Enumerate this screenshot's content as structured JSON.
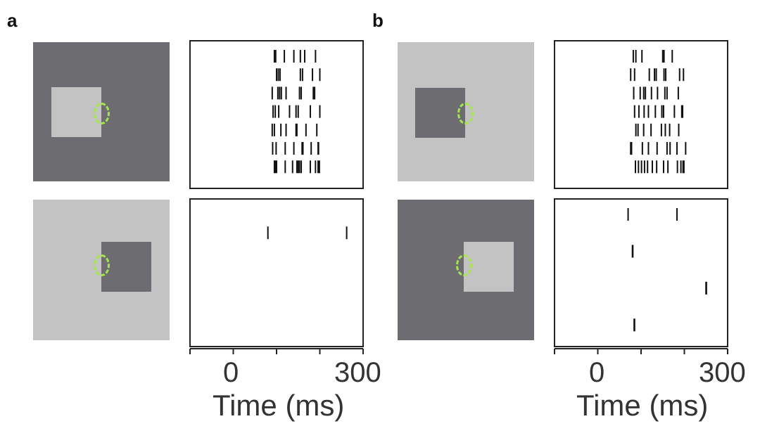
{
  "panels": {
    "a": {
      "letter": "a",
      "top_stimulus": {
        "background": "#6d6d71",
        "square": "#c3c3c3"
      },
      "bottom_stimulus": {
        "background": "#c3c3c3",
        "square": "#6d6d71"
      }
    },
    "b": {
      "letter": "b",
      "top_stimulus": {
        "background": "#c3c3c3",
        "square": "#6d6d71"
      },
      "bottom_stimulus": {
        "background": "#6d6d71",
        "square": "#c3c3c3"
      }
    }
  },
  "axis": {
    "tick_0": "0",
    "tick_300": "300",
    "title": "Time (ms)"
  },
  "colors": {
    "receptive_field": "#a6e64d",
    "spike": "#111111",
    "frame": "#222222"
  },
  "chart_data": {
    "type": "raster",
    "xlabel": "Time (ms)",
    "xlim": [
      -100,
      300
    ],
    "ticks": [
      -100,
      0,
      100,
      200,
      300
    ],
    "rasters": [
      {
        "id": "a-top",
        "trials": [
          [
            95,
            98,
            118,
            140,
            155,
            165,
            190
          ],
          [
            100,
            104,
            108,
            155,
            160,
            183,
            200
          ],
          [
            90,
            103,
            107,
            111,
            122,
            153,
            157,
            185,
            188
          ],
          [
            92,
            97,
            105,
            130,
            145,
            150,
            178,
            200
          ],
          [
            90,
            95,
            110,
            122,
            145,
            147,
            168,
            193
          ],
          [
            91,
            99,
            120,
            140,
            159,
            160,
            161,
            180,
            196,
            197
          ],
          [
            95,
            97,
            100,
            120,
            137,
            147,
            150,
            153,
            157,
            178,
            190,
            196,
            199
          ]
        ]
      },
      {
        "id": "a-bottom",
        "trials": [
          [],
          [
            80,
            262
          ],
          [],
          [],
          [],
          [],
          []
        ]
      },
      {
        "id": "b-top",
        "trials": [
          [
            82,
            88,
            102,
            150,
            153,
            172
          ],
          [
            76,
            85,
            119,
            131,
            135,
            153,
            157,
            189,
            198
          ],
          [
            83,
            98,
            106,
            110,
            124,
            138,
            155,
            160,
            186
          ],
          [
            85,
            95,
            107,
            117,
            133,
            148,
            152,
            177,
            194,
            196
          ],
          [
            88,
            93,
            106,
            123,
            147,
            156,
            166,
            187
          ],
          [
            76,
            77,
            78,
            103,
            117,
            137,
            160,
            167,
            183,
            203
          ],
          [
            87,
            94,
            101,
            108,
            115,
            126,
            136,
            152,
            162,
            184,
            192,
            197,
            199
          ]
        ]
      },
      {
        "id": "b-bottom",
        "trials": [
          [
            70,
            183
          ],
          [],
          [
            80,
            81
          ],
          [],
          [
            250,
            251
          ],
          [],
          [
            84,
            85
          ]
        ]
      }
    ]
  }
}
